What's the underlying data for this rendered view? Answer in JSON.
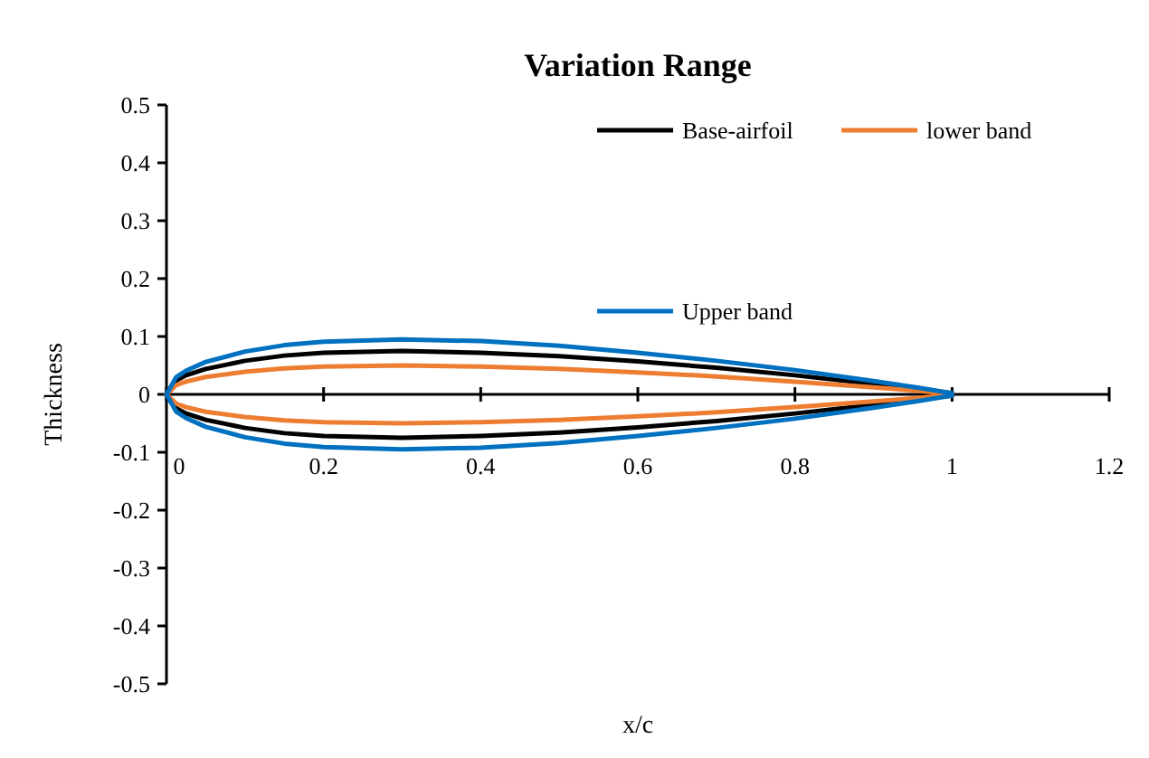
{
  "chart_data": {
    "type": "line",
    "title": "Variation Range",
    "xlabel": "x/c",
    "ylabel": "Thickness",
    "xlim": [
      0,
      1.2
    ],
    "xticks": [
      0,
      0.2,
      0.4,
      0.6,
      0.8,
      1,
      1.2
    ],
    "ylim": [
      -0.5,
      0.5
    ],
    "yticks": [
      -0.5,
      -0.4,
      -0.3,
      -0.2,
      -0.1,
      0,
      0.1,
      0.2,
      0.3,
      0.4,
      0.5
    ],
    "legend": "top right",
    "marker": "none",
    "line_style": "solid",
    "grid": false,
    "series": [
      {
        "name": "Base-airfoil",
        "color": "#000000",
        "x": [
          1,
          0.95,
          0.9,
          0.8,
          0.7,
          0.6,
          0.5,
          0.4,
          0.3,
          0.2,
          0.15,
          0.1,
          0.05,
          0.025,
          0.0125,
          0,
          0.0125,
          0.025,
          0.05,
          0.1,
          0.15,
          0.2,
          0.3,
          0.4,
          0.5,
          0.6,
          0.7,
          0.8,
          0.9,
          0.95,
          1
        ],
        "values": [
          0.002,
          0.01,
          0.018,
          0.033,
          0.046,
          0.057,
          0.066,
          0.072,
          0.075,
          0.072,
          0.067,
          0.058,
          0.044,
          0.033,
          0.024,
          0,
          -0.024,
          -0.033,
          -0.044,
          -0.058,
          -0.067,
          -0.072,
          -0.075,
          -0.072,
          -0.066,
          -0.057,
          -0.046,
          -0.033,
          -0.018,
          -0.01,
          -0.002
        ]
      },
      {
        "name": "lower band",
        "color": "#ed7d31",
        "x": [
          1,
          0.95,
          0.9,
          0.8,
          0.7,
          0.6,
          0.5,
          0.4,
          0.3,
          0.2,
          0.15,
          0.1,
          0.05,
          0.025,
          0.0125,
          0,
          0.0125,
          0.025,
          0.05,
          0.1,
          0.15,
          0.2,
          0.3,
          0.4,
          0.5,
          0.6,
          0.7,
          0.8,
          0.9,
          0.95,
          1
        ],
        "values": [
          0.001,
          0.007,
          0.012,
          0.022,
          0.031,
          0.038,
          0.044,
          0.048,
          0.05,
          0.048,
          0.045,
          0.039,
          0.03,
          0.022,
          0.016,
          0,
          -0.016,
          -0.022,
          -0.03,
          -0.039,
          -0.045,
          -0.048,
          -0.05,
          -0.048,
          -0.044,
          -0.038,
          -0.031,
          -0.022,
          -0.012,
          -0.007,
          -0.001
        ]
      },
      {
        "name": "Upper band",
        "color": "#0070c0",
        "x": [
          1,
          0.95,
          0.9,
          0.8,
          0.7,
          0.6,
          0.5,
          0.4,
          0.3,
          0.2,
          0.15,
          0.1,
          0.05,
          0.025,
          0.0125,
          0,
          0.0125,
          0.025,
          0.05,
          0.1,
          0.15,
          0.2,
          0.3,
          0.4,
          0.5,
          0.6,
          0.7,
          0.8,
          0.9,
          0.95,
          1
        ],
        "values": [
          0.002,
          0.013,
          0.023,
          0.042,
          0.058,
          0.072,
          0.084,
          0.092,
          0.095,
          0.091,
          0.085,
          0.074,
          0.056,
          0.041,
          0.03,
          0,
          -0.03,
          -0.041,
          -0.056,
          -0.074,
          -0.085,
          -0.091,
          -0.095,
          -0.092,
          -0.084,
          -0.072,
          -0.058,
          -0.042,
          -0.023,
          -0.013,
          -0.002
        ]
      }
    ]
  }
}
